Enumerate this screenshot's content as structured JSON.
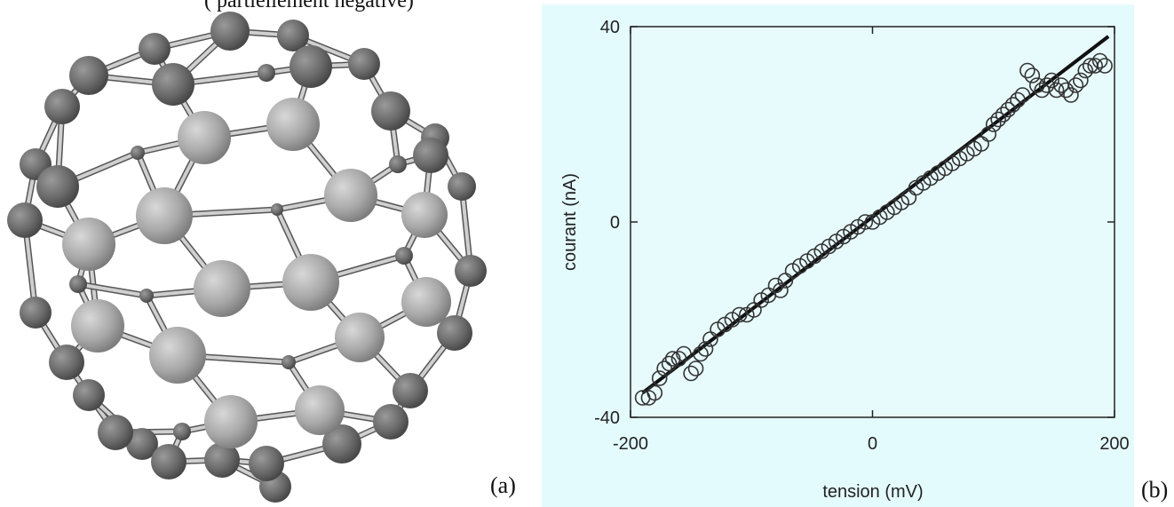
{
  "caption_fragment": "(                                                           partiellement négative)",
  "panel_a": {
    "label": "(a)"
  },
  "panel_b": {
    "label": "(b)"
  },
  "colors": {
    "plot_bg": "#e8fbfc",
    "canvas_bg": "#e4fbfd",
    "marker": "#333333",
    "fit_line": "#111111"
  },
  "chart_data": {
    "type": "scatter",
    "xlabel": "tension (mV)",
    "ylabel": "courant (nA)",
    "xlim": [
      -200,
      200
    ],
    "ylim": [
      -40,
      40
    ],
    "xticks": [
      -200,
      0,
      200
    ],
    "yticks": [
      -40,
      0,
      40
    ],
    "xtick_labels": [
      "-200",
      "0",
      "200"
    ],
    "ytick_labels": [
      "-40",
      "0",
      "40"
    ],
    "grid": false,
    "fit_line": {
      "x": [
        -190,
        195
      ],
      "y": [
        -35,
        38
      ]
    },
    "series": [
      {
        "marker": "open-circle",
        "x": [
          -190,
          -185,
          -180,
          -176,
          -172,
          -168,
          -165,
          -160,
          -156,
          -150,
          -146,
          -142,
          -138,
          -134,
          -128,
          -122,
          -116,
          -110,
          -104,
          -98,
          -92,
          -86,
          -80,
          -76,
          -72,
          -66,
          -60,
          -54,
          -48,
          -42,
          -36,
          -30,
          -24,
          -18,
          -12,
          -6,
          0,
          6,
          12,
          18,
          24,
          30,
          36,
          42,
          48,
          54,
          60,
          66,
          72,
          78,
          84,
          90,
          96,
          100,
          104,
          108,
          112,
          116,
          120,
          124,
          128,
          132,
          136,
          140,
          144,
          148,
          152,
          156,
          160,
          164,
          168,
          172,
          176,
          180,
          184,
          188,
          192
        ],
        "y": [
          -36,
          -36,
          -35,
          -32,
          -30,
          -29,
          -28,
          -28,
          -27,
          -31,
          -30,
          -27,
          -26,
          -24,
          -22,
          -21,
          -20,
          -19,
          -19,
          -18,
          -16,
          -15,
          -13,
          -14,
          -12,
          -10,
          -9,
          -8,
          -7,
          -6,
          -5,
          -4,
          -3,
          -2,
          -1,
          0,
          0,
          1,
          2,
          3,
          4,
          5,
          7,
          8,
          9,
          10,
          11,
          12,
          13,
          14,
          15,
          16,
          18,
          20,
          21,
          22,
          23,
          24,
          25,
          26,
          31,
          30,
          28,
          27,
          28,
          29,
          27,
          28,
          27,
          26,
          28,
          29,
          31,
          32,
          32,
          33,
          32
        ]
      }
    ]
  }
}
